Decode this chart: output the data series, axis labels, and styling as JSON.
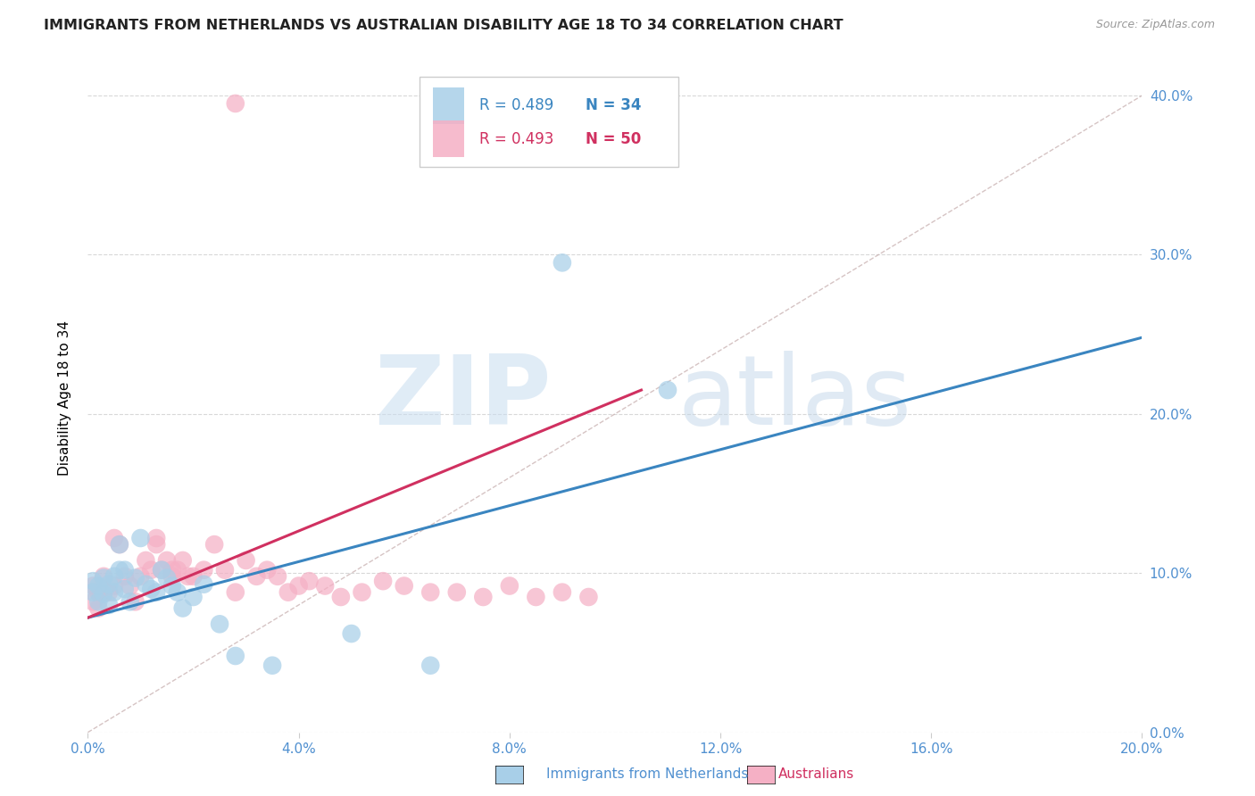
{
  "title": "IMMIGRANTS FROM NETHERLANDS VS AUSTRALIAN DISABILITY AGE 18 TO 34 CORRELATION CHART",
  "source": "Source: ZipAtlas.com",
  "ylabel": "Disability Age 18 to 34",
  "xlim": [
    0.0,
    0.2
  ],
  "ylim": [
    0.0,
    0.42
  ],
  "xtick_vals": [
    0.0,
    0.04,
    0.08,
    0.12,
    0.16,
    0.2
  ],
  "ytick_vals": [
    0.0,
    0.1,
    0.2,
    0.3,
    0.4
  ],
  "legend_label1": "Immigrants from Netherlands",
  "legend_label2": "Australians",
  "blue_fill": "#a8cfe8",
  "pink_fill": "#f5b0c5",
  "line_blue": "#3a85c0",
  "line_pink": "#d03060",
  "diag_color": "#c8b0b0",
  "grid_color": "#d8d8d8",
  "tick_color": "#5090d0",
  "blue_R": "0.489",
  "blue_N": "34",
  "pink_R": "0.493",
  "pink_N": "50",
  "blue_line_x": [
    0.0,
    0.2
  ],
  "blue_line_y": [
    0.072,
    0.248
  ],
  "pink_line_x": [
    0.0,
    0.105
  ],
  "pink_line_y": [
    0.072,
    0.215
  ],
  "diag_line_x": [
    0.0,
    0.2
  ],
  "diag_line_y": [
    0.0,
    0.4
  ],
  "blue_pts_x": [
    0.001,
    0.001,
    0.002,
    0.002,
    0.003,
    0.003,
    0.004,
    0.004,
    0.005,
    0.005,
    0.006,
    0.006,
    0.007,
    0.007,
    0.008,
    0.009,
    0.01,
    0.011,
    0.012,
    0.013,
    0.014,
    0.015,
    0.016,
    0.017,
    0.018,
    0.02,
    0.022,
    0.025,
    0.028,
    0.035,
    0.05,
    0.065,
    0.09,
    0.11
  ],
  "blue_pts_y": [
    0.088,
    0.095,
    0.092,
    0.082,
    0.097,
    0.087,
    0.08,
    0.093,
    0.098,
    0.088,
    0.118,
    0.102,
    0.102,
    0.09,
    0.082,
    0.097,
    0.122,
    0.093,
    0.09,
    0.088,
    0.102,
    0.097,
    0.092,
    0.088,
    0.078,
    0.085,
    0.093,
    0.068,
    0.048,
    0.042,
    0.062,
    0.042,
    0.295,
    0.215
  ],
  "pink_pts_x": [
    0.001,
    0.001,
    0.002,
    0.002,
    0.003,
    0.003,
    0.004,
    0.005,
    0.005,
    0.006,
    0.007,
    0.008,
    0.009,
    0.01,
    0.011,
    0.012,
    0.013,
    0.013,
    0.014,
    0.015,
    0.016,
    0.016,
    0.017,
    0.018,
    0.019,
    0.02,
    0.022,
    0.024,
    0.026,
    0.028,
    0.03,
    0.032,
    0.034,
    0.036,
    0.038,
    0.04,
    0.042,
    0.045,
    0.048,
    0.052,
    0.056,
    0.06,
    0.065,
    0.07,
    0.075,
    0.08,
    0.085,
    0.09,
    0.095,
    0.028
  ],
  "pink_pts_y": [
    0.082,
    0.092,
    0.088,
    0.078,
    0.098,
    0.088,
    0.088,
    0.122,
    0.092,
    0.118,
    0.098,
    0.092,
    0.082,
    0.098,
    0.108,
    0.102,
    0.118,
    0.122,
    0.102,
    0.108,
    0.098,
    0.102,
    0.102,
    0.108,
    0.098,
    0.098,
    0.102,
    0.118,
    0.102,
    0.088,
    0.108,
    0.098,
    0.102,
    0.098,
    0.088,
    0.092,
    0.095,
    0.092,
    0.085,
    0.088,
    0.095,
    0.092,
    0.088,
    0.088,
    0.085,
    0.092,
    0.085,
    0.088,
    0.085,
    0.395
  ],
  "wm_zip_color": "#c8ddf0",
  "wm_atlas_color": "#c0d5e8"
}
